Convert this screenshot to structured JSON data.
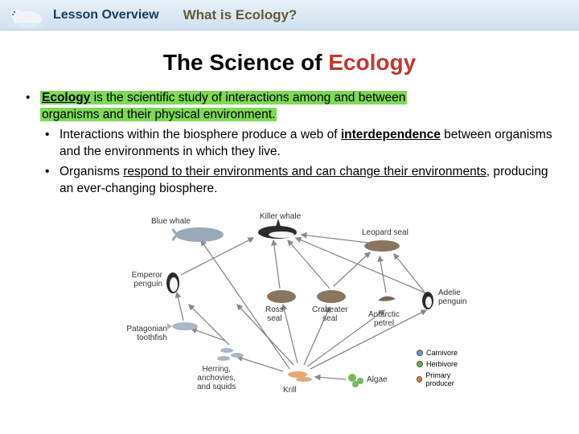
{
  "header": {
    "lesson_overview": "Lesson Overview",
    "subtitle": "What is Ecology?"
  },
  "title": {
    "prefix": "The Science of ",
    "highlight": "Ecology",
    "prefix_color": "#000000",
    "highlight_color": "#c0392b"
  },
  "bullets": {
    "b1_term": "Ecology",
    "b1_rest_hl": " is the scientific study of interactions among and between ",
    "b1_line2_hl": "organisms and their physical environment.",
    "b2a_pre": "Interactions within the biosphere produce a web of ",
    "b2a_bold": "interdependence",
    "b2a_post": " between organisms and the environments in which they live.",
    "b2b_pre": "Organisms ",
    "b2b_ul": "respond to their environments and can change their environments",
    "b2b_post": ", producing an ever-changing biosphere."
  },
  "diagram": {
    "labels": {
      "blue_whale": "Blue whale",
      "killer_whale": "Killer whale",
      "leopard_seal": "Leopard seal",
      "emperor_penguin": "Emperor\npenguin",
      "adelie_penguin": "Adelie\npenguin",
      "ross_seal": "Ross\nseal",
      "crabeater_seal": "Crabeater\nseal",
      "antarctic_petrel": "Antarctic\npetrel",
      "patagonian_toothfish": "Patagonian\ntoothfish",
      "herring": "Herring,\nanchovies,\nand squids",
      "krill": "Krill",
      "algae": "Algae"
    },
    "legend": {
      "carnivore": {
        "label": "Carnivore",
        "color": "#5b9bd5"
      },
      "herbivore": {
        "label": "Herbivore",
        "color": "#70ad47"
      },
      "producer": {
        "label": "Primary producer",
        "color": "#ed7d31"
      }
    },
    "colors": {
      "whale_body": "#9aa8b8",
      "seal_body": "#8a7560",
      "penguin_black": "#2a2a2a",
      "penguin_white": "#f5f5f5",
      "fish_body": "#a8b8c8",
      "krill_body": "#e8a878",
      "algae_body": "#7ab860",
      "arrow": "#888888"
    }
  }
}
